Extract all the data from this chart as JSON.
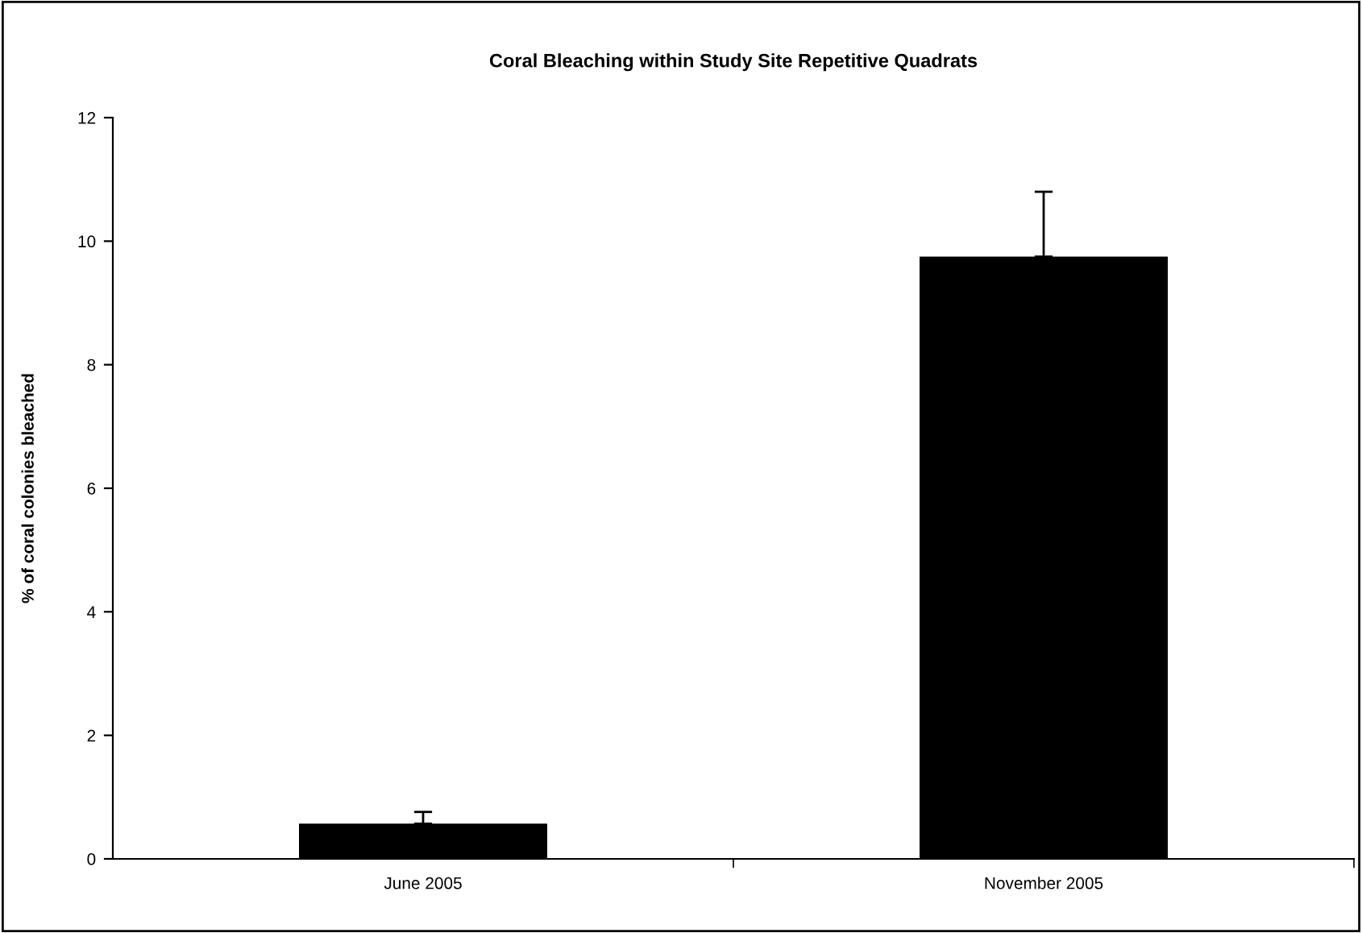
{
  "chart_data": {
    "type": "bar",
    "title": "Coral Bleaching within Study Site Repetitive Quadrats",
    "ylabel": "% of coral colonies bleached",
    "categories": [
      "June 2005",
      "November 2005"
    ],
    "values": [
      0.57,
      9.75
    ],
    "errors": [
      [
        0.57,
        0.76
      ],
      [
        9.75,
        10.8
      ]
    ],
    "color": "#000000",
    "ylim": [
      0,
      12
    ],
    "yticks": [
      0,
      2,
      4,
      6,
      8,
      10,
      12
    ],
    "grid": false,
    "legend": false
  }
}
